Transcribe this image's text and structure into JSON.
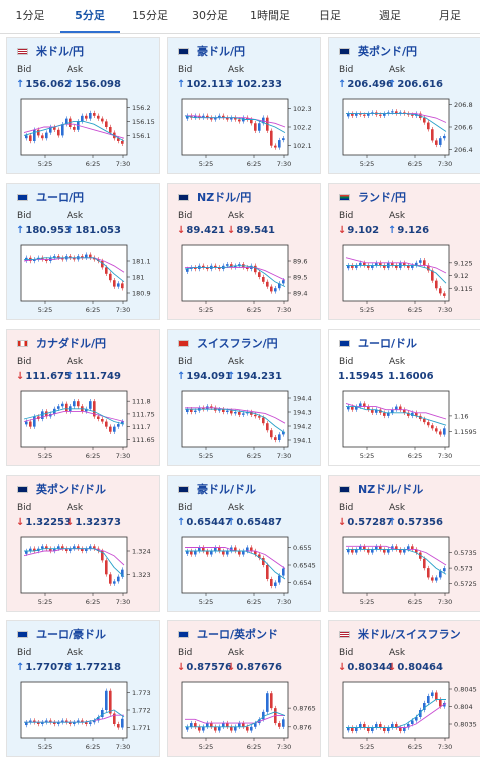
{
  "tabs": [
    "1分足",
    "5分足",
    "15分足",
    "30分足",
    "1時間足",
    "日足",
    "週足",
    "月足"
  ],
  "active_tab": 1,
  "labels": {
    "bid": "Bid",
    "ask": "Ask"
  },
  "colors": {
    "up_card": "#e8f3fb",
    "down_card": "#fbecec",
    "neutral_card": "#ffffff",
    "up_candle": "#2b6fd6",
    "down_candle": "#d83a3a",
    "ma_short": "#27a0c8",
    "ma_long": "#c84bd1",
    "link": "#1a47a0"
  },
  "x_ticks": [
    "5:25",
    "6:25",
    "7:30"
  ],
  "cards": [
    {
      "pair": "米ドル/円",
      "flag": "us-jp-flag-icon",
      "trend": "up",
      "bid": "156.062",
      "ask": "156.098",
      "bid_dir": "up",
      "ask_dir": "up",
      "y_ticks": [
        156.2,
        156.15,
        156.1
      ],
      "ylim": [
        156.03,
        156.23
      ],
      "candles": [
        156.1,
        156.08,
        156.12,
        156.1,
        156.09,
        156.11,
        156.13,
        156.12,
        156.1,
        156.14,
        156.16,
        156.13,
        156.12,
        156.15,
        156.17,
        156.16,
        156.18,
        156.17,
        156.16,
        156.15,
        156.13,
        156.11,
        156.09,
        156.08,
        156.07
      ],
      "ma_short": [
        156.1,
        156.11,
        156.12,
        156.13,
        156.14,
        156.15,
        156.15,
        156.14,
        156.12,
        156.1,
        156.08
      ],
      "ma_long": [
        156.11,
        156.12,
        156.13,
        156.13,
        156.14,
        156.14,
        156.13,
        156.12,
        156.11,
        156.1,
        156.09
      ]
    },
    {
      "pair": "豪ドル/円",
      "flag": "au-jp-flag-icon",
      "trend": "up",
      "bid": "102.113",
      "ask": "102.233",
      "bid_dir": "up",
      "ask_dir": "up",
      "y_ticks": [
        102.3,
        102.2,
        102.1
      ],
      "ylim": [
        102.05,
        102.35
      ],
      "candles": [
        102.26,
        102.25,
        102.26,
        102.25,
        102.26,
        102.25,
        102.24,
        102.25,
        102.26,
        102.25,
        102.24,
        102.25,
        102.24,
        102.23,
        102.25,
        102.24,
        102.22,
        102.18,
        102.22,
        102.25,
        102.18,
        102.1,
        102.09,
        102.13,
        102.14
      ],
      "ma_short": [
        102.26,
        102.25,
        102.25,
        102.25,
        102.25,
        102.25,
        102.24,
        102.24,
        102.22,
        102.2,
        102.17
      ],
      "ma_long": [
        102.26,
        102.26,
        102.25,
        102.25,
        102.25,
        102.25,
        102.25,
        102.24,
        102.23,
        102.22,
        102.2
      ]
    },
    {
      "pair": "英ポンド/円",
      "flag": "gb-jp-flag-icon",
      "trend": "up",
      "bid": "206.496",
      "ask": "206.616",
      "bid_dir": "up",
      "ask_dir": "up",
      "y_ticks": [
        206.8,
        206.6,
        206.4
      ],
      "ylim": [
        206.35,
        206.85
      ],
      "candles": [
        206.72,
        206.7,
        206.72,
        206.71,
        206.7,
        206.72,
        206.73,
        206.71,
        206.7,
        206.72,
        206.73,
        206.74,
        206.72,
        206.73,
        206.72,
        206.71,
        206.7,
        206.72,
        206.68,
        206.64,
        206.58,
        206.48,
        206.44,
        206.5,
        206.52
      ],
      "ma_short": [
        206.72,
        206.72,
        206.72,
        206.72,
        206.72,
        206.72,
        206.72,
        206.71,
        206.68,
        206.62,
        206.56
      ],
      "ma_long": [
        206.72,
        206.72,
        206.72,
        206.72,
        206.72,
        206.72,
        206.72,
        206.72,
        206.7,
        206.68,
        206.64
      ]
    },
    {
      "pair": "ユーロ/円",
      "flag": "eu-jp-flag-icon",
      "trend": "up",
      "bid": "180.953",
      "ask": "181.053",
      "bid_dir": "up",
      "ask_dir": "up",
      "y_ticks": [
        181.1,
        181,
        180.9
      ],
      "ylim": [
        180.85,
        181.2
      ],
      "candles": [
        181.12,
        181.1,
        181.11,
        181.12,
        181.11,
        181.1,
        181.12,
        181.13,
        181.12,
        181.11,
        181.13,
        181.12,
        181.11,
        181.13,
        181.12,
        181.14,
        181.12,
        181.11,
        181.1,
        181.06,
        181.02,
        180.98,
        180.94,
        180.96,
        180.93
      ],
      "ma_short": [
        181.11,
        181.11,
        181.12,
        181.12,
        181.12,
        181.12,
        181.12,
        181.12,
        181.08,
        181.02,
        180.97
      ],
      "ma_long": [
        181.1,
        181.11,
        181.11,
        181.11,
        181.12,
        181.12,
        181.12,
        181.12,
        181.1,
        181.07,
        181.03
      ]
    },
    {
      "pair": "NZドル/円",
      "flag": "nz-jp-flag-icon",
      "trend": "down",
      "bid": "89.421",
      "ask": "89.541",
      "bid_dir": "down",
      "ask_dir": "down",
      "y_ticks": [
        89.6,
        89.5,
        89.4
      ],
      "ylim": [
        89.35,
        89.7
      ],
      "candles": [
        89.55,
        89.56,
        89.55,
        89.57,
        89.56,
        89.55,
        89.57,
        89.56,
        89.55,
        89.57,
        89.58,
        89.56,
        89.57,
        89.58,
        89.56,
        89.55,
        89.57,
        89.53,
        89.5,
        89.47,
        89.44,
        89.41,
        89.43,
        89.46,
        89.48
      ],
      "ma_short": [
        89.55,
        89.56,
        89.56,
        89.56,
        89.56,
        89.57,
        89.57,
        89.56,
        89.52,
        89.47,
        89.44
      ],
      "ma_long": [
        89.56,
        89.56,
        89.56,
        89.56,
        89.56,
        89.56,
        89.56,
        89.56,
        89.54,
        89.51,
        89.48
      ]
    },
    {
      "pair": "ランド/円",
      "flag": "za-jp-flag-icon",
      "trend": "down",
      "bid": "9.102",
      "ask": "9.126",
      "bid_dir": "down",
      "ask_dir": "up",
      "y_ticks": [
        9.125,
        9.12,
        9.115
      ],
      "ylim": [
        9.11,
        9.132
      ],
      "candles": [
        9.124,
        9.123,
        9.124,
        9.125,
        9.124,
        9.123,
        9.124,
        9.125,
        9.124,
        9.123,
        9.125,
        9.124,
        9.123,
        9.125,
        9.124,
        9.123,
        9.124,
        9.125,
        9.126,
        9.124,
        9.122,
        9.118,
        9.115,
        9.113,
        9.112
      ],
      "ma_short": [
        9.124,
        9.124,
        9.124,
        9.124,
        9.124,
        9.124,
        9.124,
        9.124,
        9.123,
        9.121,
        9.117
      ],
      "ma_long": [
        9.127,
        9.126,
        9.125,
        9.125,
        9.125,
        9.125,
        9.125,
        9.124,
        9.124,
        9.123,
        9.121
      ]
    },
    {
      "pair": "カナダドル/円",
      "flag": "ca-jp-flag-icon",
      "trend": "down",
      "bid": "111.675",
      "ask": "111.749",
      "bid_dir": "down",
      "ask_dir": "up",
      "y_ticks": [
        111.8,
        111.75,
        111.7,
        111.65
      ],
      "ylim": [
        111.62,
        111.84
      ],
      "candles": [
        111.72,
        111.7,
        111.74,
        111.73,
        111.76,
        111.74,
        111.75,
        111.77,
        111.78,
        111.79,
        111.76,
        111.78,
        111.8,
        111.78,
        111.76,
        111.77,
        111.8,
        111.74,
        111.73,
        111.72,
        111.7,
        111.68,
        111.7,
        111.71,
        111.72
      ],
      "ma_short": [
        111.73,
        111.74,
        111.75,
        111.76,
        111.77,
        111.77,
        111.77,
        111.76,
        111.74,
        111.72,
        111.71
      ],
      "ma_long": [
        111.72,
        111.73,
        111.74,
        111.75,
        111.76,
        111.76,
        111.76,
        111.75,
        111.74,
        111.73,
        111.72
      ]
    },
    {
      "pair": "スイスフラン/円",
      "flag": "ch-jp-flag-icon",
      "trend": "up",
      "bid": "194.091",
      "ask": "194.231",
      "bid_dir": "up",
      "ask_dir": "up",
      "y_ticks": [
        194.4,
        194.3,
        194.2,
        194.1
      ],
      "ylim": [
        194.05,
        194.45
      ],
      "candles": [
        194.32,
        194.3,
        194.31,
        194.33,
        194.32,
        194.34,
        194.33,
        194.31,
        194.32,
        194.3,
        194.31,
        194.29,
        194.3,
        194.28,
        194.29,
        194.3,
        194.28,
        194.27,
        194.26,
        194.22,
        194.17,
        194.12,
        194.1,
        194.14,
        194.16
      ],
      "ma_short": [
        194.32,
        194.32,
        194.32,
        194.32,
        194.32,
        194.31,
        194.3,
        194.29,
        194.26,
        194.2,
        194.15
      ],
      "ma_long": [
        194.33,
        194.33,
        194.33,
        194.33,
        194.32,
        194.32,
        194.31,
        194.3,
        194.29,
        194.26,
        194.22
      ]
    },
    {
      "pair": "ユーロ/ドル",
      "flag": "eu-us-flag-icon",
      "trend": "neutral",
      "bid": "1.15945",
      "ask": "1.16006",
      "bid_dir": "none",
      "ask_dir": "none",
      "y_ticks": [
        1.16,
        1.1595
      ],
      "ylim": [
        1.159,
        1.1608
      ],
      "candles": [
        1.1603,
        1.1602,
        1.1603,
        1.1604,
        1.1603,
        1.1602,
        1.1601,
        1.1602,
        1.1601,
        1.16,
        1.1601,
        1.1602,
        1.1603,
        1.1602,
        1.1601,
        1.16,
        1.1601,
        1.16,
        1.1599,
        1.1598,
        1.1597,
        1.1596,
        1.1595,
        1.1594,
        1.1596
      ],
      "ma_short": [
        1.1603,
        1.1603,
        1.1602,
        1.1602,
        1.1601,
        1.1601,
        1.1601,
        1.16,
        1.1599,
        1.1598,
        1.1597
      ],
      "ma_long": [
        1.1604,
        1.1603,
        1.1603,
        1.1603,
        1.1602,
        1.1602,
        1.1602,
        1.1601,
        1.1601,
        1.16,
        1.1599
      ]
    },
    {
      "pair": "英ポンド/ドル",
      "flag": "gb-us-flag-icon",
      "trend": "down",
      "bid": "1.32253",
      "ask": "1.32373",
      "bid_dir": "down",
      "ask_dir": "down",
      "y_ticks": [
        1.324,
        1.323
      ],
      "ylim": [
        1.3222,
        1.3246
      ],
      "candles": [
        1.324,
        1.3241,
        1.324,
        1.3241,
        1.3242,
        1.3241,
        1.324,
        1.3241,
        1.3242,
        1.3241,
        1.324,
        1.3241,
        1.3242,
        1.3241,
        1.324,
        1.3241,
        1.3242,
        1.3241,
        1.324,
        1.3236,
        1.323,
        1.3226,
        1.3227,
        1.3229,
        1.3232
      ],
      "ma_short": [
        1.324,
        1.324,
        1.3241,
        1.3241,
        1.3241,
        1.3241,
        1.3241,
        1.3241,
        1.3239,
        1.3233,
        1.3229
      ],
      "ma_long": [
        1.3238,
        1.3239,
        1.324,
        1.324,
        1.3241,
        1.3241,
        1.3241,
        1.3241,
        1.324,
        1.3238,
        1.3234
      ]
    },
    {
      "pair": "豪ドル/ドル",
      "flag": "au-us-flag-icon",
      "trend": "up",
      "bid": "0.65447",
      "ask": "0.65487",
      "bid_dir": "up",
      "ask_dir": "up",
      "y_ticks": [
        0.655,
        0.6545,
        0.654
      ],
      "ylim": [
        0.6537,
        0.6553
      ],
      "candles": [
        0.6549,
        0.6548,
        0.6549,
        0.655,
        0.6549,
        0.6548,
        0.6549,
        0.655,
        0.6549,
        0.6548,
        0.6549,
        0.655,
        0.6549,
        0.6548,
        0.6549,
        0.655,
        0.6549,
        0.6548,
        0.6547,
        0.6545,
        0.6541,
        0.6539,
        0.654,
        0.6542,
        0.6544
      ],
      "ma_short": [
        0.6549,
        0.6549,
        0.6549,
        0.6549,
        0.6549,
        0.6549,
        0.6549,
        0.6548,
        0.6546,
        0.6543,
        0.6541
      ],
      "ma_long": [
        0.655,
        0.655,
        0.655,
        0.655,
        0.655,
        0.6549,
        0.6549,
        0.6549,
        0.6548,
        0.6546,
        0.6544
      ]
    },
    {
      "pair": "NZドル/ドル",
      "flag": "nz-us-flag-icon",
      "trend": "down",
      "bid": "0.57287",
      "ask": "0.57356",
      "bid_dir": "down",
      "ask_dir": "up",
      "y_ticks": [
        0.5735,
        0.573,
        0.5725
      ],
      "ylim": [
        0.5722,
        0.574
      ],
      "candles": [
        0.5736,
        0.5735,
        0.5736,
        0.5737,
        0.5736,
        0.5735,
        0.5736,
        0.5737,
        0.5736,
        0.5735,
        0.5736,
        0.5737,
        0.5736,
        0.5735,
        0.5736,
        0.5737,
        0.5736,
        0.5735,
        0.5733,
        0.573,
        0.5727,
        0.5726,
        0.5727,
        0.5729,
        0.573
      ],
      "ma_short": [
        0.5736,
        0.5736,
        0.5736,
        0.5736,
        0.5736,
        0.5736,
        0.5736,
        0.5735,
        0.5733,
        0.573,
        0.5728
      ],
      "ma_long": [
        0.5737,
        0.5737,
        0.5737,
        0.5737,
        0.5737,
        0.5736,
        0.5736,
        0.5736,
        0.5735,
        0.5733,
        0.5731
      ]
    },
    {
      "pair": "ユーロ/豪ドル",
      "flag": "eu-au-flag-icon",
      "trend": "up",
      "bid": "1.77078",
      "ask": "1.77218",
      "bid_dir": "up",
      "ask_dir": "up",
      "y_ticks": [
        1.773,
        1.772,
        1.771
      ],
      "ylim": [
        1.7704,
        1.7736
      ],
      "candles": [
        1.7713,
        1.7714,
        1.7713,
        1.7712,
        1.7713,
        1.7714,
        1.7713,
        1.7712,
        1.7713,
        1.7714,
        1.7713,
        1.7712,
        1.7713,
        1.7714,
        1.7713,
        1.7712,
        1.7713,
        1.7714,
        1.7716,
        1.772,
        1.7731,
        1.7718,
        1.7712,
        1.771,
        1.7715
      ],
      "ma_short": [
        1.7713,
        1.7713,
        1.7713,
        1.7713,
        1.7713,
        1.7713,
        1.7713,
        1.7714,
        1.7718,
        1.772,
        1.7716
      ],
      "ma_long": [
        1.7713,
        1.7713,
        1.7713,
        1.7713,
        1.7713,
        1.7713,
        1.7713,
        1.7714,
        1.7715,
        1.7717,
        1.7717
      ]
    },
    {
      "pair": "ユーロ/英ポンド",
      "flag": "eu-gb-flag-icon",
      "trend": "down",
      "bid": "0.87576",
      "ask": "0.87676",
      "bid_dir": "down",
      "ask_dir": "down",
      "y_ticks": [
        0.8765,
        0.876
      ],
      "ylim": [
        0.8757,
        0.8772
      ],
      "candles": [
        0.876,
        0.8761,
        0.876,
        0.8759,
        0.876,
        0.8761,
        0.876,
        0.8759,
        0.876,
        0.8761,
        0.876,
        0.8759,
        0.876,
        0.8761,
        0.876,
        0.8759,
        0.876,
        0.8761,
        0.8762,
        0.8764,
        0.8769,
        0.8765,
        0.8761,
        0.876,
        0.8762
      ],
      "ma_short": [
        0.876,
        0.876,
        0.876,
        0.876,
        0.876,
        0.876,
        0.876,
        0.8761,
        0.8763,
        0.8764,
        0.8763
      ],
      "ma_long": [
        0.8762,
        0.8762,
        0.8761,
        0.8761,
        0.8761,
        0.8761,
        0.8761,
        0.8761,
        0.8762,
        0.8763,
        0.8763
      ]
    },
    {
      "pair": "米ドル/スイスフラン",
      "flag": "us-ch-flag-icon",
      "trend": "down",
      "bid": "0.80344",
      "ask": "0.80464",
      "bid_dir": "down",
      "ask_dir": "down",
      "y_ticks": [
        0.8045,
        0.804,
        0.8035
      ],
      "ylim": [
        0.8031,
        0.8047
      ],
      "candles": [
        0.8034,
        0.8033,
        0.8034,
        0.8035,
        0.8034,
        0.8033,
        0.8034,
        0.8035,
        0.8034,
        0.8033,
        0.8034,
        0.8035,
        0.8034,
        0.8033,
        0.8034,
        0.8035,
        0.8036,
        0.8037,
        0.8039,
        0.8041,
        0.8043,
        0.8044,
        0.8042,
        0.804,
        0.8041
      ],
      "ma_short": [
        0.8034,
        0.8034,
        0.8034,
        0.8034,
        0.8034,
        0.8034,
        0.8035,
        0.8037,
        0.804,
        0.8042,
        0.8042
      ],
      "ma_long": [
        0.8034,
        0.8034,
        0.8034,
        0.8034,
        0.8034,
        0.8034,
        0.8034,
        0.8035,
        0.8037,
        0.8039,
        0.8041
      ]
    }
  ]
}
